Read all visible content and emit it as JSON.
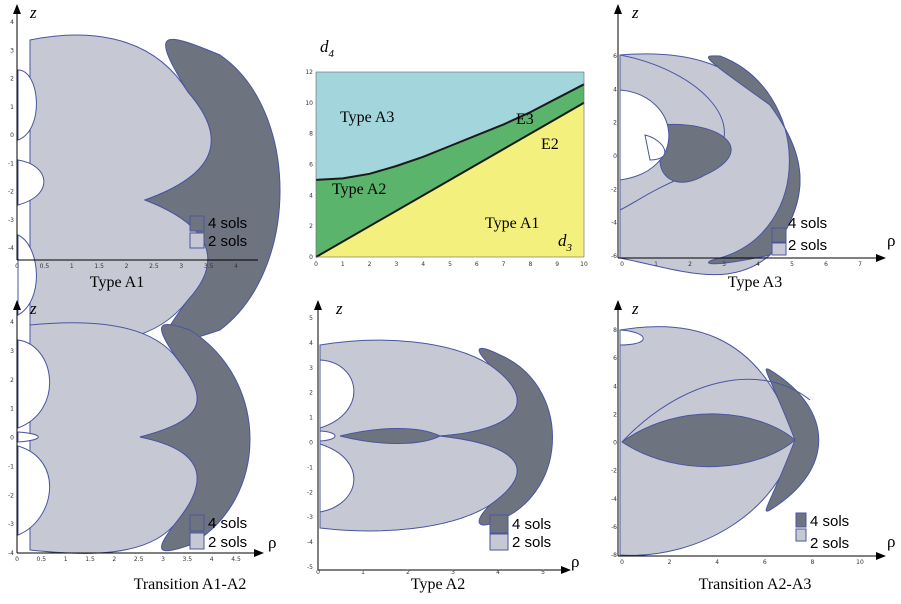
{
  "panels": [
    {
      "caption": "Type A1",
      "z_label": "z",
      "rho_label": "",
      "xticks": [
        "0",
        "0.5",
        "1",
        "1.5",
        "2",
        "2.5",
        "3",
        "3.5",
        "4"
      ],
      "yticks": [
        "4",
        "3",
        "2",
        "1",
        "0",
        "-1",
        "-2",
        "-3",
        "-4"
      ]
    },
    {
      "caption": "Type A3",
      "z_label": "z",
      "rho_label": "ρ",
      "xticks": [
        "0",
        "1",
        "2",
        "3",
        "4",
        "5",
        "6",
        "7"
      ],
      "yticks": [
        "6",
        "4",
        "2",
        "0",
        "-2",
        "-4",
        "-6"
      ]
    },
    {
      "caption": "Transition A1-A2",
      "z_label": "z",
      "rho_label": "ρ",
      "xticks": [
        "0",
        "0.5",
        "1",
        "1.5",
        "2",
        "2.5",
        "3",
        "3.5",
        "4",
        "4.5"
      ],
      "yticks": [
        "4",
        "3",
        "2",
        "1",
        "0",
        "-1",
        "-2",
        "-3",
        "-4"
      ]
    },
    {
      "caption": "Type A2",
      "z_label": "z",
      "rho_label": "ρ",
      "xticks": [
        "0",
        "1",
        "2",
        "3",
        "4",
        "5"
      ],
      "yticks": [
        "5",
        "4",
        "3",
        "2",
        "1",
        "0",
        "-1",
        "-2",
        "-3",
        "-4",
        "-5"
      ]
    },
    {
      "caption": "Transition A2-A3",
      "z_label": "z",
      "rho_label": "ρ",
      "xticks": [
        "0",
        "2",
        "4",
        "6",
        "8",
        "10"
      ],
      "yticks": [
        "8",
        "6",
        "4",
        "2",
        "0",
        "-2",
        "-4",
        "-6",
        "-8"
      ]
    }
  ],
  "legend": {
    "dark_label": "4 sols",
    "light_label": "2 sols",
    "dark_color": "#6d7480",
    "light_color": "#c6c9d4"
  },
  "phase_diagram": {
    "y_label": "d",
    "y_label_sub": "4",
    "x_label": "d",
    "x_label_sub": "3",
    "xticks": [
      "0",
      "1",
      "2",
      "3",
      "4",
      "5",
      "6",
      "7",
      "8",
      "9",
      "10"
    ],
    "yticks": [
      "12",
      "10",
      "8",
      "6",
      "4",
      "2",
      "0"
    ],
    "regions": [
      {
        "label": "Type A3",
        "color": "#a3d5dd"
      },
      {
        "label": "Type A2",
        "color": "#5ab46c"
      },
      {
        "label": "Type A1",
        "color": "#f4f07e"
      }
    ],
    "curves": [
      {
        "label": "E3"
      },
      {
        "label": "E2"
      }
    ],
    "chart_data": {
      "type": "area",
      "xlim": [
        0,
        10
      ],
      "ylim": [
        0,
        12
      ],
      "E2": {
        "x": [
          0,
          10
        ],
        "y": [
          0,
          10
        ]
      },
      "E3": {
        "x": [
          0,
          1,
          2,
          3,
          4,
          5,
          6,
          7,
          8,
          9,
          10
        ],
        "y": [
          5.0,
          5.1,
          5.4,
          5.9,
          6.5,
          7.2,
          7.9,
          8.6,
          9.4,
          10.3,
          11.2
        ]
      }
    }
  }
}
